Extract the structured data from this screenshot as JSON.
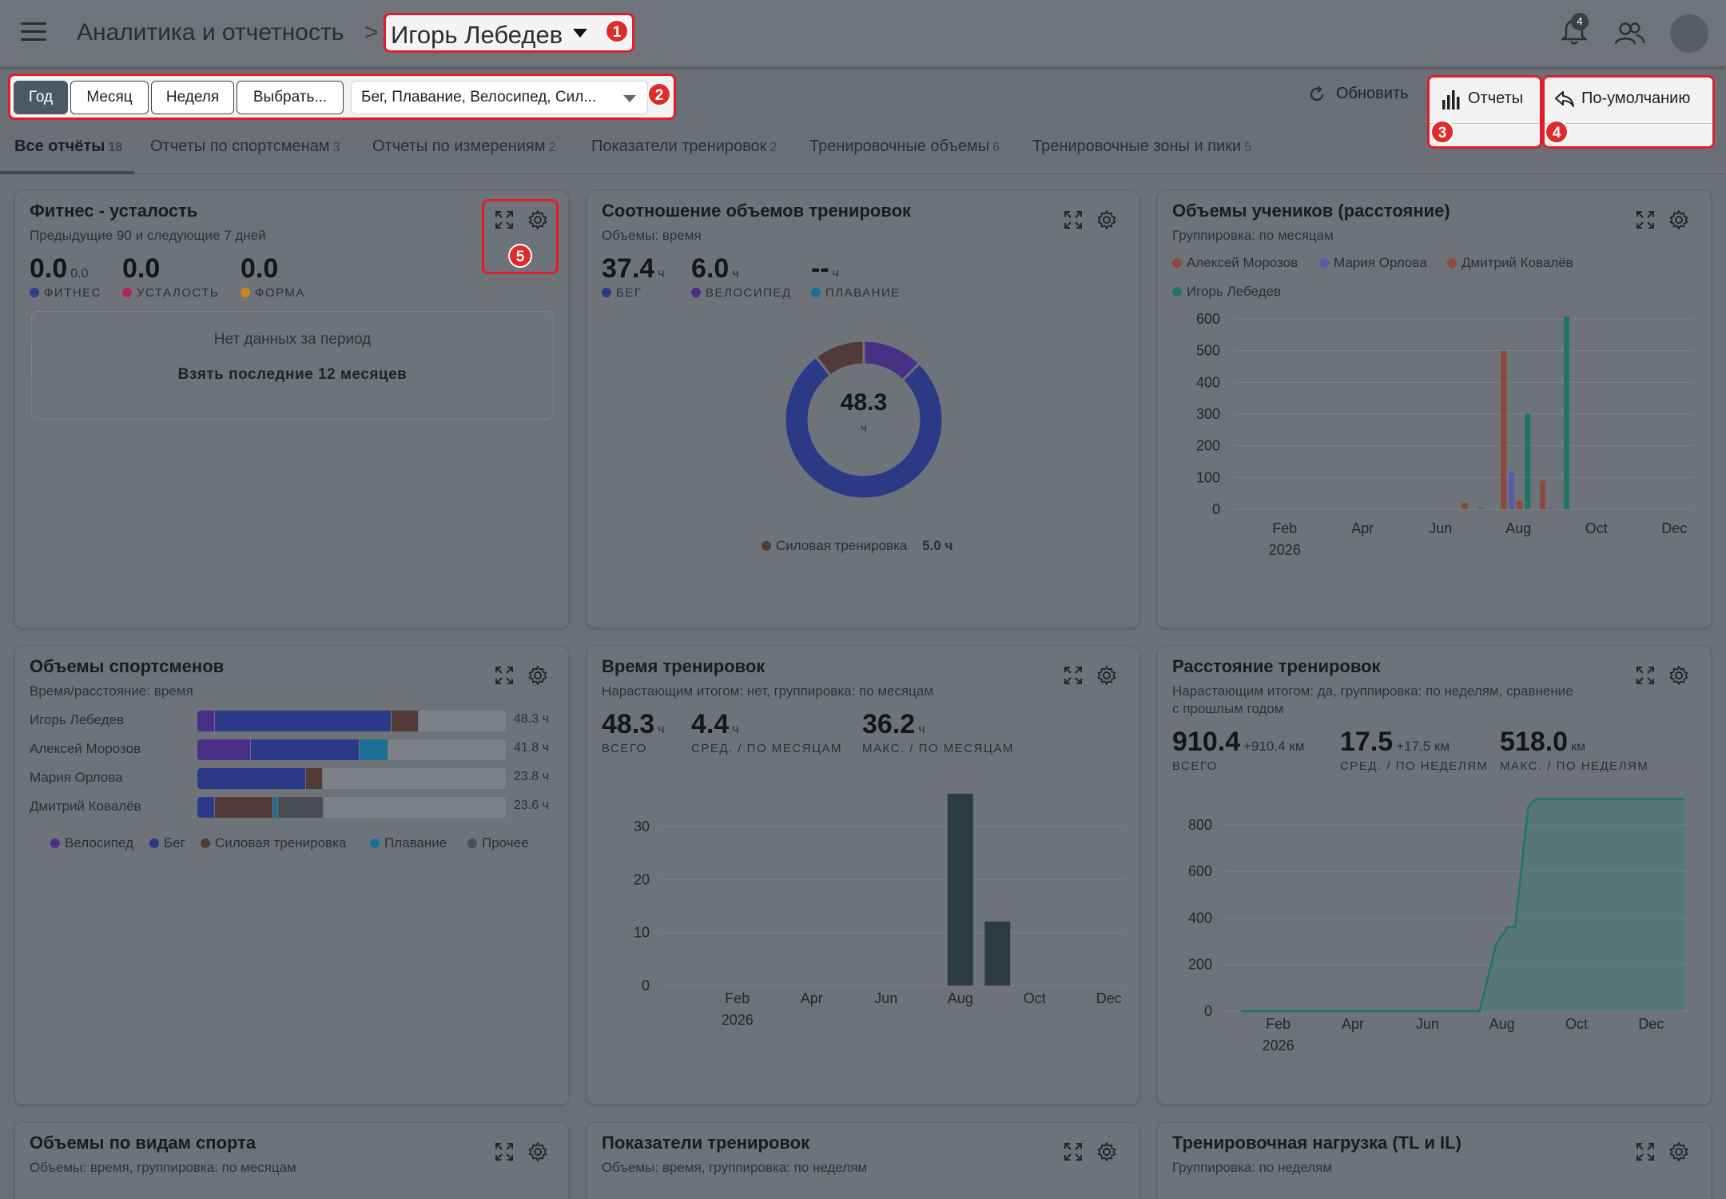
{
  "header": {
    "breadcrumb_root": "Аналитика и отчетность",
    "breadcrumb_sep": ">",
    "athlete": "Игорь Лебедев",
    "notifications_count": "4"
  },
  "markers": [
    "1",
    "2",
    "3",
    "4",
    "5"
  ],
  "toolbar": {
    "periods": [
      "Год",
      "Месяц",
      "Неделя",
      "Выбрать..."
    ],
    "active_period": "Год",
    "sports": "Бег, Плавание, Велосипед, Сил...",
    "refresh": "Обновить",
    "reports": "Отчеты",
    "default": "По-умолчанию"
  },
  "tabs": [
    {
      "label": "Все отчёты",
      "count": "18"
    },
    {
      "label": "Отчеты по спортсменам",
      "count": "3"
    },
    {
      "label": "Отчеты по измерениям",
      "count": "2"
    },
    {
      "label": "Показатели тренировок",
      "count": "2"
    },
    {
      "label": "Тренировочные объемы",
      "count": "6"
    },
    {
      "label": "Тренировочные зоны и пики",
      "count": "5"
    }
  ],
  "colors": {
    "fitness": "#2f3e8f",
    "fatigue": "#b2234f",
    "form": "#c98a16",
    "run": "#2b3a86",
    "bike": "#4a2f86",
    "swim": "#1b6f95",
    "strength": "#523a36",
    "other": "#4a4e54",
    "moroz": "#8a4a3c",
    "orlova": "#5c5aa6",
    "kovalev": "#8e4c3c",
    "lebedev": "#1f7468",
    "dark_bar": "#2d3b42"
  },
  "cards": {
    "fitness": {
      "title": "Фитнес - усталость",
      "subtitle": "Предыдущие 90 и следующие 7 дней",
      "fitness_value": "0.0",
      "fitness_small": "0.0",
      "fatigue_value": "0.0",
      "form_value": "0.0",
      "fitness_label": "ФИТНЕС",
      "fatigue_label": "УСТАЛОСТЬ",
      "form_label": "ФОРМА",
      "empty_text": "Нет данных за период",
      "empty_action": "Взять последние 12 месяцев"
    },
    "ratio": {
      "title": "Соотношение объемов тренировок",
      "subtitle": "Объемы: время",
      "run_value": "37.4",
      "bike_value": "6.0",
      "swim_value": "--",
      "unit": "ч",
      "run_label": "БЕГ",
      "bike_label": "ВЕЛОСИПЕД",
      "swim_label": "ПЛАВАНИЕ",
      "center_value": "48.3",
      "center_unit": "ч",
      "legend_label": "Силовая тренировка",
      "legend_value": "5.0 ч"
    },
    "students": {
      "title": "Объемы учеников (расстояние)",
      "subtitle": "Группировка: по месяцам",
      "year_label": "2026"
    },
    "athletes": {
      "title": "Объемы спортсменов",
      "subtitle": "Время/расстояние: время",
      "rows": [
        {
          "name": "Игорь Лебедев",
          "value": "48.3 ч",
          "bike": 2.8,
          "run": 27.6,
          "strength": 4.2,
          "swim": 0,
          "other": 0
        },
        {
          "name": "Алексей Морозов",
          "value": "41.8 ч",
          "bike": 8.4,
          "run": 17.0,
          "strength": 0,
          "swim": 4.5,
          "other": 0
        },
        {
          "name": "Мария Орлова",
          "value": "23.8 ч",
          "bike": 0,
          "run": 17.0,
          "strength": 2.7,
          "swim": 0,
          "other": 0
        },
        {
          "name": "Дмитрий Ковалёв",
          "value": "23.6 ч",
          "bike": 0,
          "run": 2.7,
          "strength": 9.2,
          "swim": 0.7,
          "other": 7.2
        }
      ],
      "legend": [
        "Велосипед",
        "Бег",
        "Силовая тренировка",
        "Плавание",
        "Прочее"
      ]
    },
    "time": {
      "title": "Время тренировок",
      "subtitle": "Нарастающим итогом: нет, группировка: по месяцам",
      "total": "48.3",
      "avg": "4.4",
      "max": "36.2",
      "unit": "ч",
      "total_label": "ВСЕГО",
      "avg_label": "СРЕД. / ПО МЕСЯЦАМ",
      "max_label": "МАКС. / ПО МЕСЯЦАМ",
      "year_label": "2026"
    },
    "distance": {
      "title": "Расстояние тренировок",
      "subtitle_line1": "Нарастающим итогом: да, группировка: по неделям, сравнение",
      "subtitle_line2": "с прошлым годом",
      "total": "910.4",
      "total_delta": "+910.4 км",
      "avg": "17.5",
      "avg_delta": "+17.5 км",
      "max": "518.0",
      "max_unit": "км",
      "total_label": "ВСЕГО",
      "avg_label": "СРЕД. / ПО НЕДЕЛЯМ",
      "max_label": "МАКС. / ПО НЕДЕЛЯМ",
      "year_label": "2026"
    },
    "sports": {
      "title": "Объемы по видам спорта",
      "subtitle": "Объемы: время, группировка: по месяцам"
    },
    "indicators": {
      "title": "Показатели тренировок",
      "subtitle": "Объемы: время, группировка: по неделям"
    },
    "load": {
      "title": "Тренировочная нагрузка (TL и IL)",
      "subtitle": "Группировка: по неделям"
    }
  },
  "chart_data": [
    {
      "type": "pie",
      "title": "Соотношение объемов тренировок",
      "labels": [
        "Бег",
        "Велосипед",
        "Силовая тренировка"
      ],
      "values": [
        37.4,
        6.0,
        5.0
      ],
      "total": 48.3
    },
    {
      "type": "bar",
      "title": "Объемы учеников (расстояние)",
      "x": [
        "Jul",
        "Aug",
        "Sep"
      ],
      "xticks": [
        "Feb",
        "Apr",
        "Jun",
        "Aug",
        "Oct",
        "Dec"
      ],
      "ylim": [
        0,
        600
      ],
      "yticks": [
        0,
        100,
        200,
        300,
        400,
        500,
        600
      ],
      "series": [
        {
          "name": "Алексей Морозов",
          "values": [
            20,
            500,
            90
          ]
        },
        {
          "name": "Мария Орлова",
          "values": [
            0,
            120,
            5
          ]
        },
        {
          "name": "Дмитрий Ковалёв",
          "values": [
            5,
            25,
            0
          ]
        },
        {
          "name": "Игорь Лебедев",
          "values": [
            0,
            300,
            608
          ]
        }
      ]
    },
    {
      "type": "bar",
      "title": "Время тренировок",
      "categories": [
        "Jan",
        "Feb",
        "Mar",
        "Apr",
        "May",
        "Jun",
        "Jul",
        "Aug",
        "Sep",
        "Oct",
        "Nov",
        "Dec"
      ],
      "values": [
        0,
        0,
        0,
        0,
        0,
        0,
        0,
        36.2,
        12.1,
        0,
        0,
        0
      ],
      "xticks": [
        "Feb",
        "Apr",
        "Jun",
        "Aug",
        "Oct",
        "Dec"
      ],
      "ylim": [
        0,
        38
      ],
      "yticks": [
        0,
        10,
        20,
        30
      ]
    },
    {
      "type": "area",
      "title": "Расстояние тренировок",
      "x_months": [
        1,
        7.4,
        7.85,
        8.15,
        8.35,
        8.7,
        8.9,
        12.9
      ],
      "y": [
        0,
        0,
        290,
        360,
        360,
        875,
        910.4,
        910.4
      ],
      "xticks": [
        "Feb",
        "Apr",
        "Jun",
        "Aug",
        "Oct",
        "Dec"
      ],
      "ylim": [
        0,
        920
      ],
      "yticks": [
        0,
        200,
        400,
        600,
        800
      ]
    }
  ]
}
